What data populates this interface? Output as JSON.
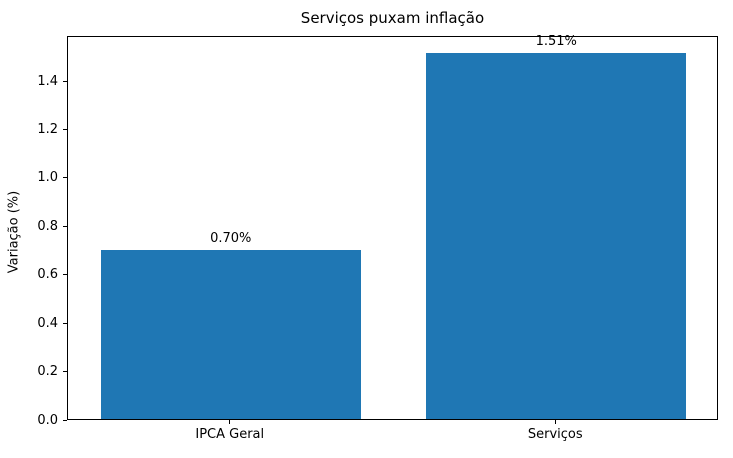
{
  "chart_data": {
    "type": "bar",
    "title": "Serviços puxam inflação",
    "xlabel": "",
    "ylabel": "Variação (%)",
    "categories": [
      "IPCA Geral",
      "Serviços"
    ],
    "values": [
      0.7,
      1.51
    ],
    "value_labels": [
      "0.70%",
      "1.51%"
    ],
    "yticks": [
      0.0,
      0.2,
      0.4,
      0.6,
      0.8,
      1.0,
      1.2,
      1.4
    ],
    "ytick_labels": [
      "0.0",
      "0.2",
      "0.4",
      "0.6",
      "0.8",
      "1.0",
      "1.2",
      "1.4"
    ],
    "ylim": [
      0,
      1.586
    ],
    "grid": false,
    "legend": null,
    "colors": {
      "bar": "#1f77b4",
      "text": "#000000",
      "frame": "#000000",
      "background": "#ffffff"
    }
  }
}
